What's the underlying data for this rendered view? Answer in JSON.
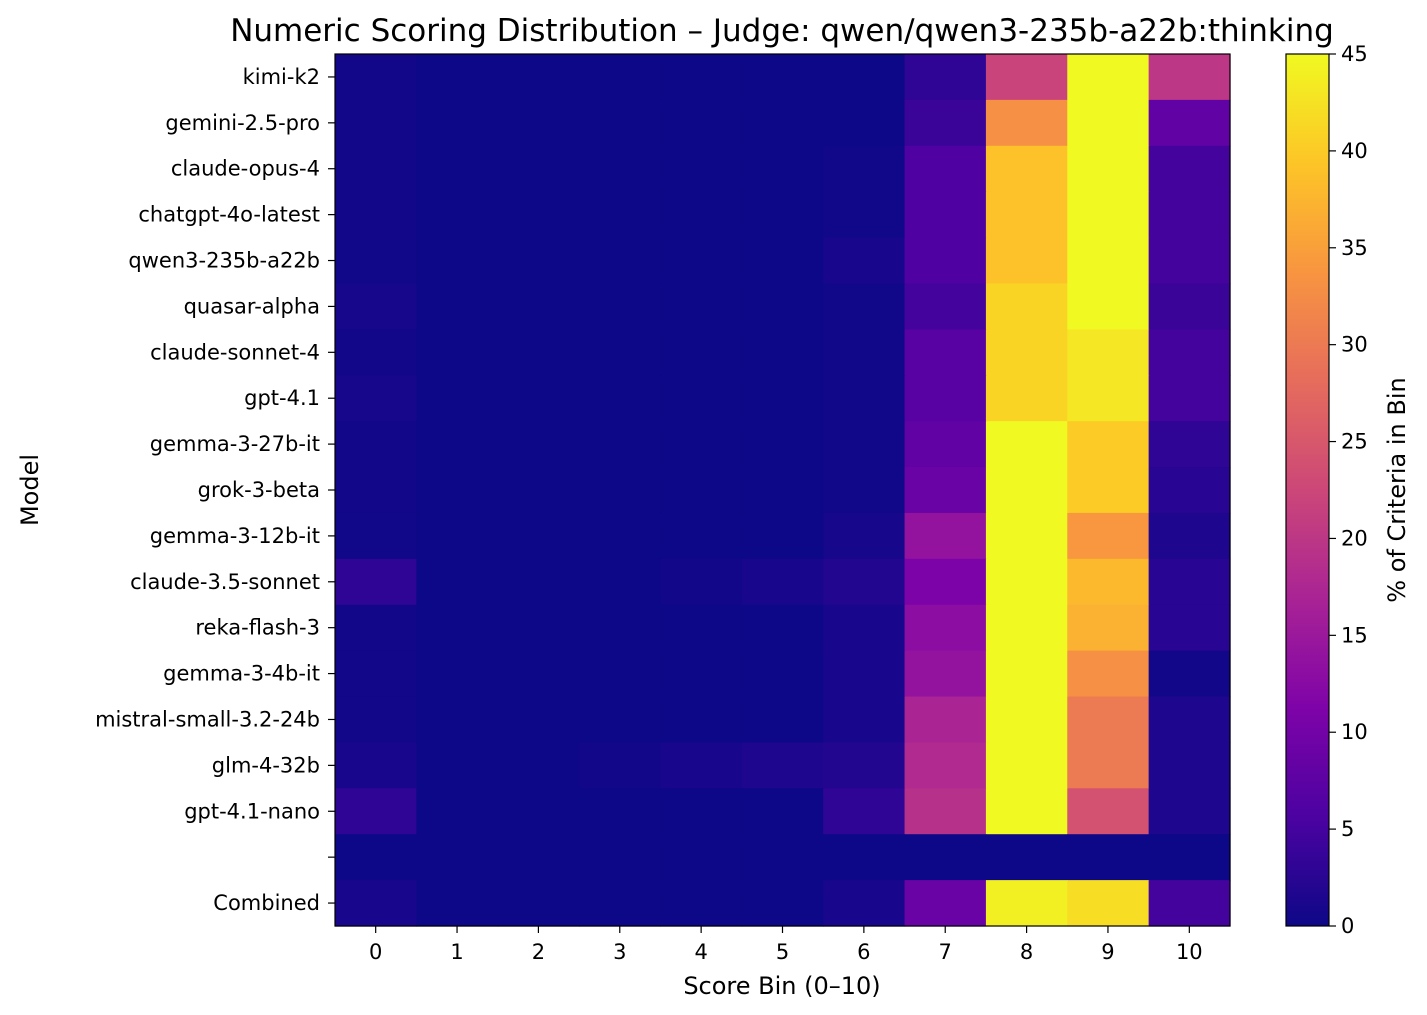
{
  "chart_data": {
    "type": "heatmap",
    "title": "Numeric Scoring Distribution – Judge: qwen/qwen3-235b-a22b:thinking",
    "xlabel": "Score Bin (0–10)",
    "ylabel": "Model",
    "x_categories": [
      "0",
      "1",
      "2",
      "3",
      "4",
      "5",
      "6",
      "7",
      "8",
      "9",
      "10"
    ],
    "y_categories": [
      "kimi-k2",
      "gemini-2.5-pro",
      "claude-opus-4",
      "chatgpt-4o-latest",
      "qwen3-235b-a22b",
      "quasar-alpha",
      "claude-sonnet-4",
      "gpt-4.1",
      "gemma-3-27b-it",
      "grok-3-beta",
      "gemma-3-12b-it",
      "claude-3.5-sonnet",
      "reka-flash-3",
      "gemma-3-4b-it",
      "mistral-small-3.2-24b",
      "glm-4-32b",
      "gpt-4.1-nano",
      "",
      "Combined"
    ],
    "values": [
      [
        0.5,
        0,
        0,
        0,
        0,
        0,
        0,
        3,
        22,
        48,
        20
      ],
      [
        0.5,
        0,
        0,
        0,
        0,
        0,
        0,
        4,
        33,
        52,
        8
      ],
      [
        0.5,
        0,
        0,
        0,
        0,
        0,
        0.3,
        6,
        39,
        49,
        5
      ],
      [
        0.5,
        0,
        0,
        0,
        0,
        0,
        0.3,
        6,
        39,
        49,
        5
      ],
      [
        0.3,
        0,
        0,
        0,
        0,
        0,
        1,
        6,
        39,
        48,
        5
      ],
      [
        0.8,
        0,
        0,
        0,
        0,
        0,
        0.3,
        5,
        41,
        47,
        4
      ],
      [
        0.5,
        0,
        0,
        0,
        0,
        0,
        0.3,
        7,
        41,
        43,
        5
      ],
      [
        0.8,
        0,
        0,
        0,
        0,
        0,
        0.3,
        7,
        41,
        43,
        5
      ],
      [
        0.5,
        0,
        0,
        0,
        0,
        0,
        0.3,
        8,
        46,
        40,
        3
      ],
      [
        0.5,
        0,
        0,
        0,
        0,
        0,
        0.3,
        9,
        46,
        40,
        2.5
      ],
      [
        0.3,
        0,
        0,
        0,
        0,
        0,
        0.8,
        14,
        47,
        34,
        1.5
      ],
      [
        3,
        0,
        0,
        0,
        0.5,
        1,
        2,
        11,
        46,
        38,
        2.5
      ],
      [
        0.5,
        0,
        0,
        0,
        0,
        0,
        1,
        13,
        46,
        37,
        2.5
      ],
      [
        0.5,
        0,
        0,
        0,
        0,
        0,
        1,
        14,
        46,
        33,
        0.5
      ],
      [
        0.5,
        0,
        0,
        0,
        0,
        0,
        1,
        17,
        48,
        30,
        1.5
      ],
      [
        1,
        0,
        0,
        0.5,
        1,
        1.5,
        2,
        18,
        48,
        30,
        1.5
      ],
      [
        3,
        0,
        0,
        0,
        0,
        0,
        3,
        19,
        48,
        24,
        1.5
      ],
      [
        0,
        0,
        0,
        0,
        0,
        0,
        0,
        0,
        0,
        0,
        0
      ],
      [
        1,
        0,
        0,
        0,
        0,
        0,
        1,
        9,
        44,
        42,
        5
      ]
    ],
    "vmin": 0,
    "vmax": 45,
    "colormap": "plasma",
    "colorbar_label": "% of Criteria in Bin",
    "colorbar_ticks": [
      0,
      5,
      10,
      15,
      20,
      25,
      30,
      35,
      40,
      45
    ],
    "grid": false
  }
}
